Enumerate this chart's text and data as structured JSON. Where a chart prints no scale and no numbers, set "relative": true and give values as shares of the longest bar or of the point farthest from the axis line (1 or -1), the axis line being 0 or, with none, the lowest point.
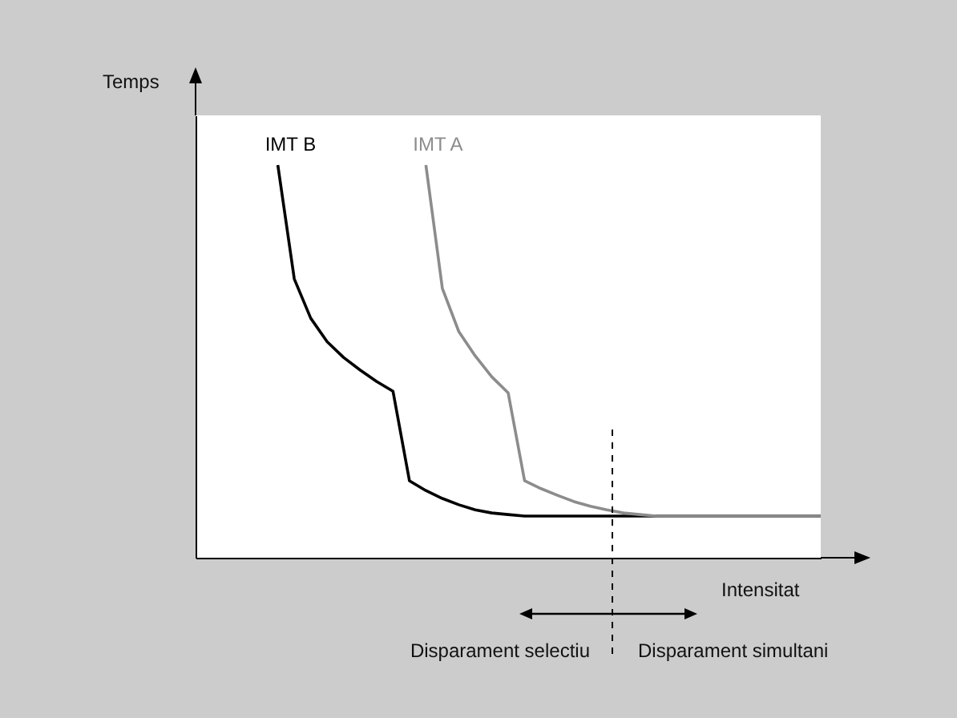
{
  "chart_data": {
    "type": "line",
    "relative": true,
    "xlabel": "Intensitat",
    "ylabel": "Temps",
    "categories": [
      null,
      null,
      null,
      null,
      null,
      null,
      null,
      null,
      null,
      null,
      null,
      null,
      null,
      null,
      null,
      null,
      null,
      null,
      null,
      null,
      null,
      null,
      null,
      null,
      null,
      null,
      null,
      null,
      null,
      null,
      null,
      null,
      null,
      null,
      null,
      null,
      null,
      null,
      null
    ],
    "series": [
      {
        "name": "IMT B",
        "color": "#000000",
        "values": [
          null,
          null,
          null,
          null,
          null,
          1.0,
          0.71,
          0.61,
          0.55,
          0.51,
          0.478,
          0.449,
          0.424,
          0.196,
          0.171,
          0.151,
          0.135,
          0.122,
          0.114,
          0.11,
          0.106,
          0.106,
          0.106,
          0.106,
          0.106,
          0.106,
          0.106,
          0.106,
          0.106,
          0.106,
          0.106,
          0.106,
          0.106,
          0.106,
          0.106,
          0.106,
          0.106,
          0.106,
          0.106
        ]
      },
      {
        "name": "IMT A",
        "color": "#8c8c8c",
        "values": [
          null,
          null,
          null,
          null,
          null,
          null,
          null,
          null,
          null,
          null,
          null,
          null,
          null,
          null,
          1.0,
          0.686,
          0.576,
          0.514,
          0.461,
          0.42,
          0.196,
          0.176,
          0.159,
          0.143,
          0.131,
          0.122,
          0.114,
          0.11,
          0.106,
          0.106,
          0.106,
          0.106,
          0.106,
          0.106,
          0.106,
          0.106,
          0.106,
          0.106,
          0.106
        ]
      }
    ],
    "annotations": [
      "Disparament selectiu",
      "Disparament simultani"
    ],
    "legend": false,
    "grid": false,
    "marker": "none",
    "line_style": "solid"
  }
}
